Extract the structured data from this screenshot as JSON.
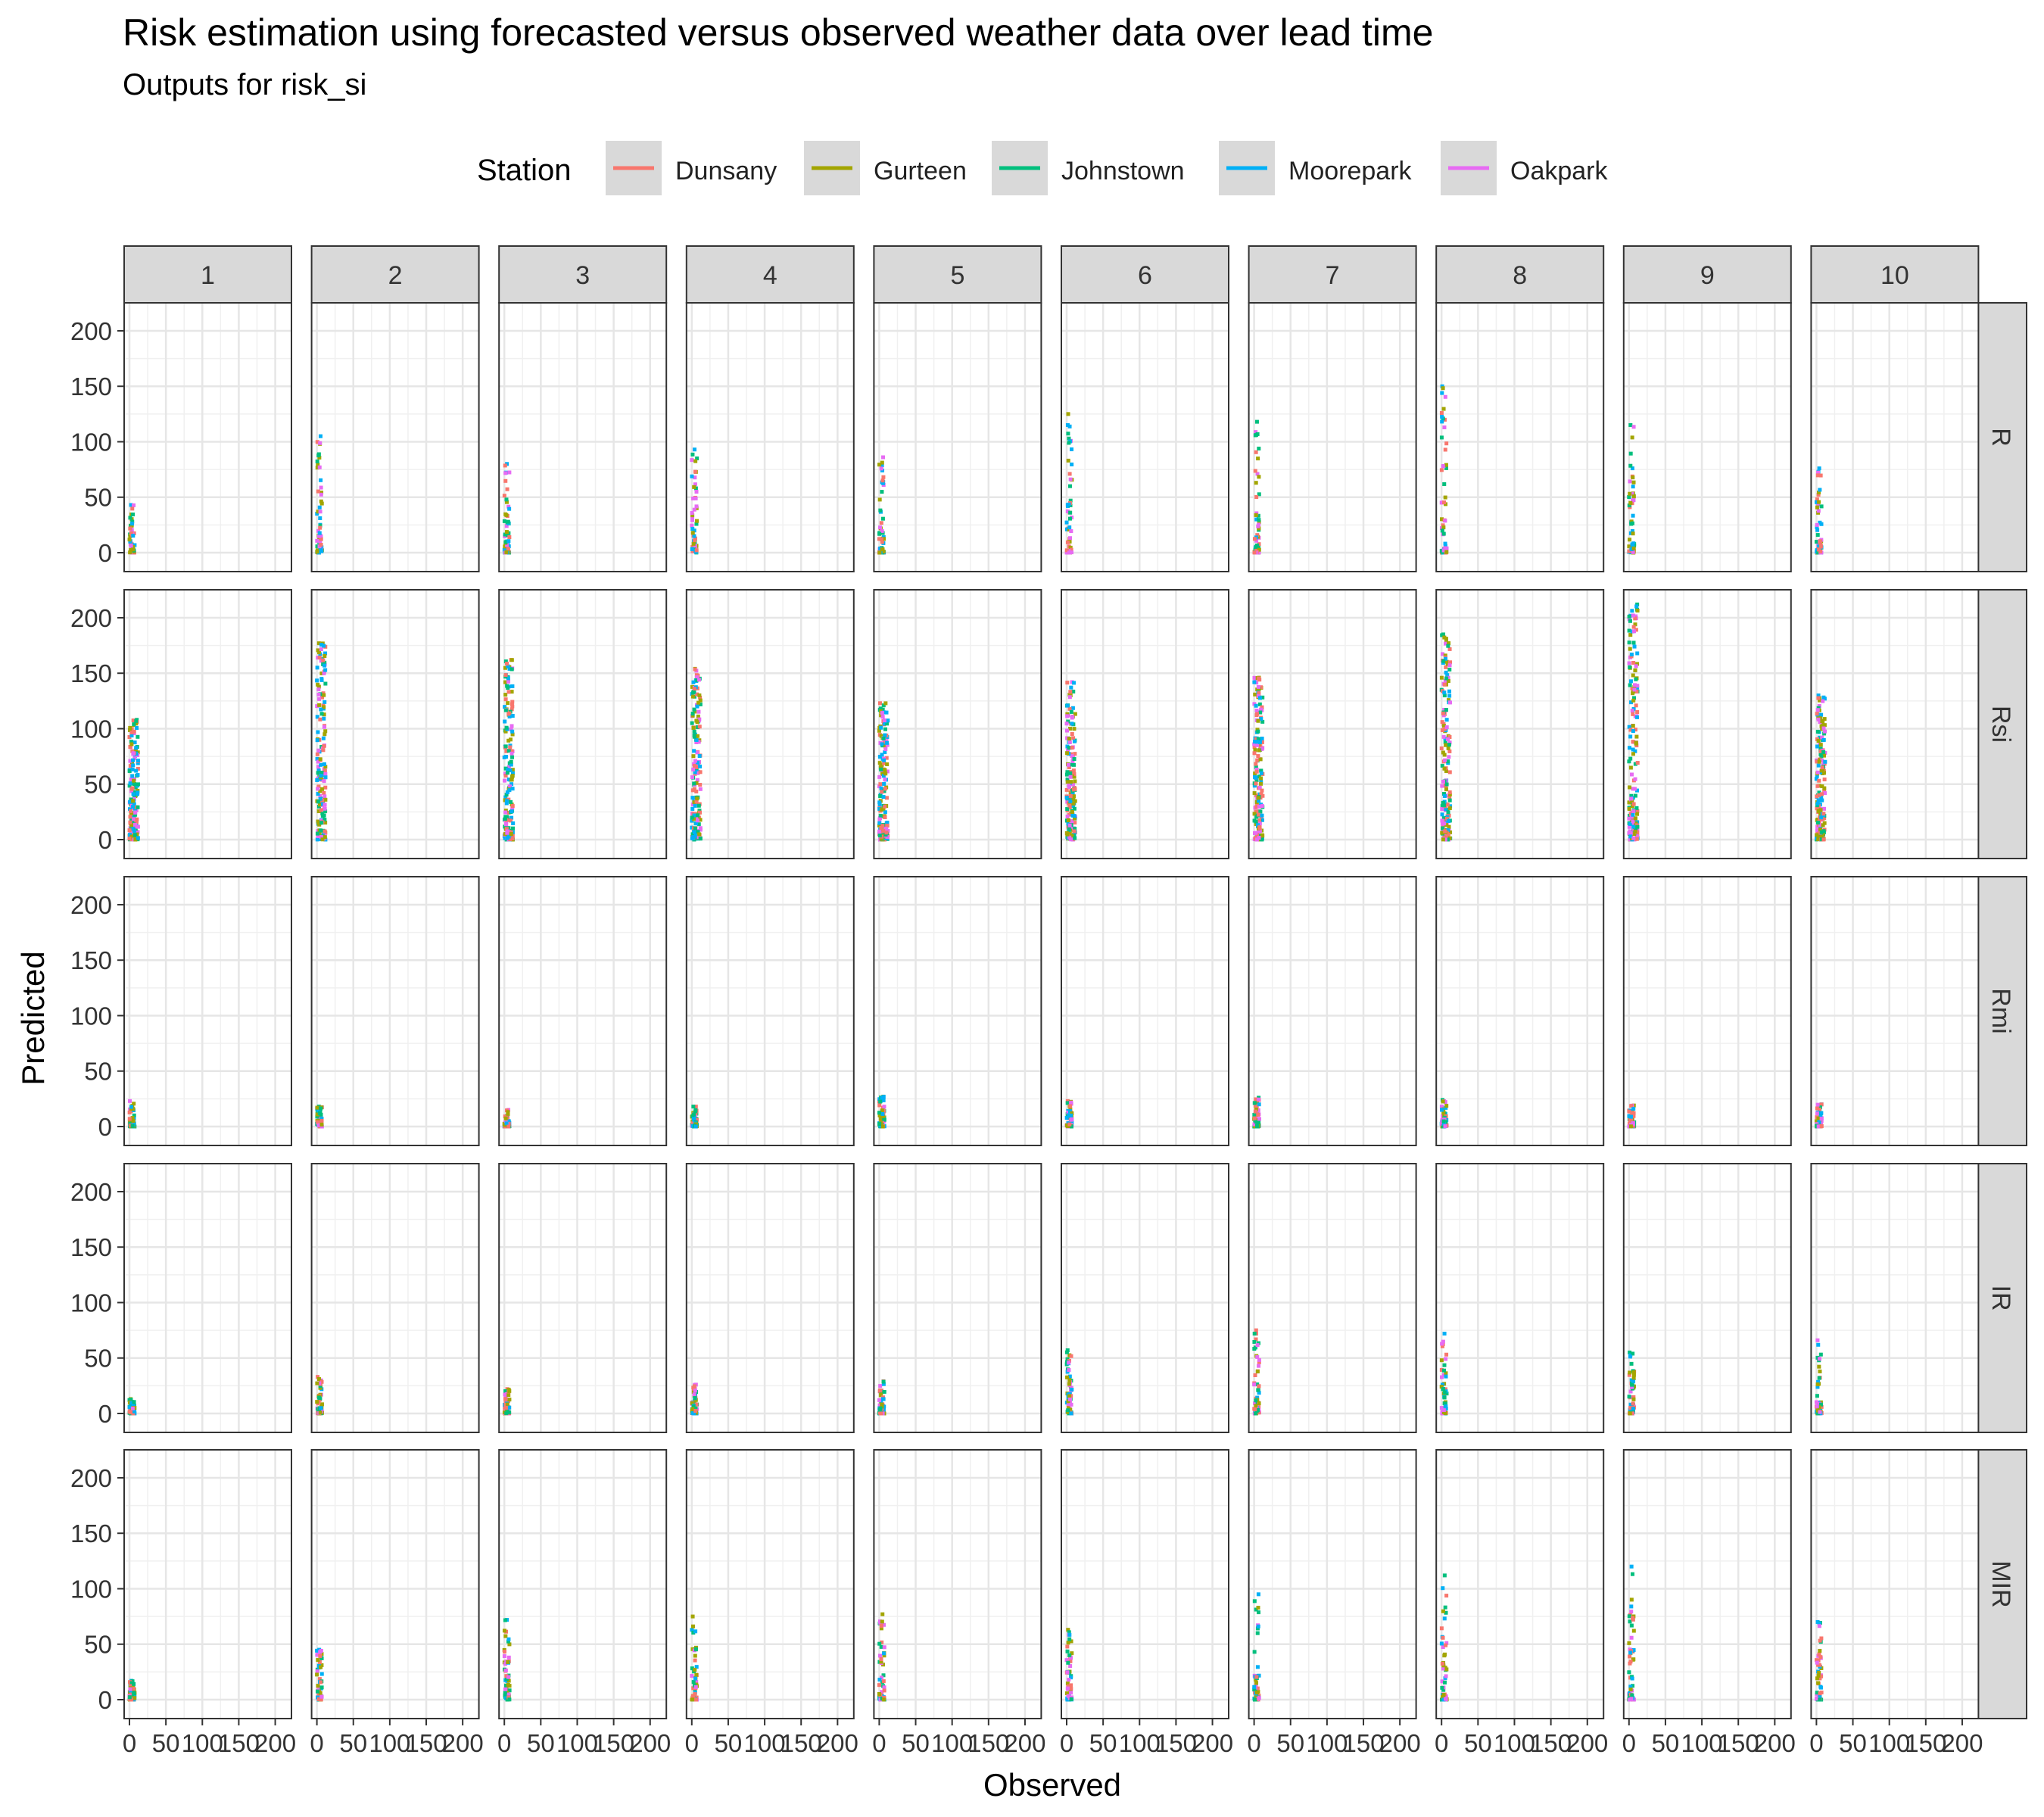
{
  "title": "Risk estimation using forecasted versus observed weather data over lead time",
  "subtitle": "Outputs for  risk_si",
  "legend": {
    "title": "Station",
    "placement": "top",
    "items": [
      {
        "label": "Dunsany",
        "color": "#F8766D"
      },
      {
        "label": "Gurteen",
        "color": "#A3A500"
      },
      {
        "label": "Johnstown",
        "color": "#00BF7D"
      },
      {
        "label": "Moorepark",
        "color": "#00B0F6"
      },
      {
        "label": "Oakpark",
        "color": "#E76BF3"
      }
    ]
  },
  "chart_data": {
    "type": "scatter",
    "title": "Risk estimation using forecasted versus observed weather data over lead time",
    "subtitle": "Outputs for  risk_si",
    "xlabel": "Observed",
    "ylabel": "Predicted",
    "xlim": [
      0,
      215
    ],
    "ylim": [
      0,
      215
    ],
    "x_ticks": [
      0,
      50,
      100,
      150,
      200
    ],
    "y_ticks": [
      0,
      50,
      100,
      150,
      200
    ],
    "grid": true,
    "facet_cols": [
      "1",
      "2",
      "3",
      "4",
      "5",
      "6",
      "7",
      "8",
      "9",
      "10"
    ],
    "facet_rows": [
      "R",
      "Rsi",
      "Rmi",
      "IR",
      "MIR"
    ],
    "series_names": [
      "Dunsany",
      "Gurteen",
      "Johnstown",
      "Moorepark",
      "Oakpark"
    ],
    "series_colors": [
      "#F8766D",
      "#A3A500",
      "#00BF7D",
      "#00B0F6",
      "#E76BF3"
    ],
    "max_predicted": [
      [
        43,
        105,
        80,
        93,
        86,
        125,
        118,
        150,
        115,
        76
      ],
      [
        108,
        177,
        162,
        154,
        123,
        142,
        146,
        185,
        212,
        130
      ],
      [
        23,
        18,
        15,
        18,
        27,
        23,
        26,
        24,
        19,
        20
      ],
      [
        13,
        33,
        22,
        26,
        29,
        57,
        75,
        72,
        55,
        66
      ],
      [
        17,
        45,
        72,
        75,
        77,
        63,
        95,
        112,
        120,
        70
      ]
    ],
    "panels_note_max_observed": 12
  }
}
